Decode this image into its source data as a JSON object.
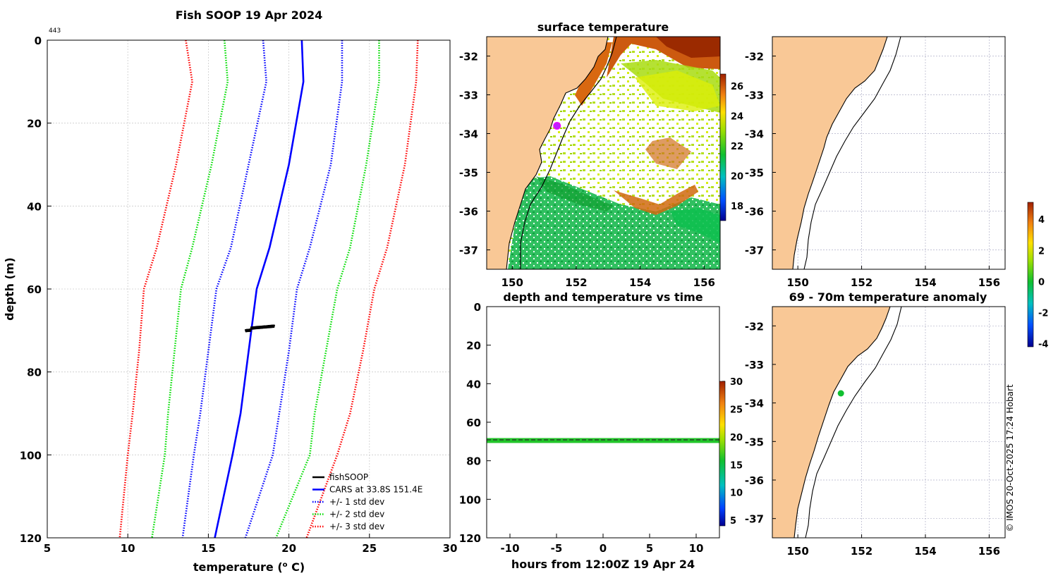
{
  "profile": {
    "title": "Fish SOOP 19 Apr 2024",
    "id_label": "443",
    "xlabel_prefix": "temperature (",
    "xlabel_sup": "o",
    "xlabel_suffix": " C)",
    "ylabel": "depth (m)",
    "legend": [
      {
        "label": "fishSOOP",
        "color": "#000000",
        "style": "solid"
      },
      {
        "label": "CARS at 33.8S 151.4E",
        "color": "#0000ff",
        "style": "solid"
      },
      {
        "label": "+/- 1 std dev",
        "color": "#0000ff",
        "style": "dotted"
      },
      {
        "label": "+/- 2 std dev",
        "color": "#00dd00",
        "style": "dotted"
      },
      {
        "label": "+/- 3 std dev",
        "color": "#ff0000",
        "style": "dotted"
      }
    ]
  },
  "sst_map": {
    "title": "surface temperature",
    "colorbar_ticks": [
      "18",
      "20",
      "22",
      "24",
      "26"
    ]
  },
  "depth_time": {
    "title": "depth and temperature vs time",
    "xlabel": "hours from 12:00Z 19 Apr 24",
    "colorbar_ticks": [
      "5",
      "10",
      "15",
      "20",
      "25",
      "30"
    ]
  },
  "anomaly_map": {
    "title": "69 - 70m temperature anomaly",
    "colorbar_ticks": [
      "-4",
      "-2",
      "0",
      "2",
      "4"
    ]
  },
  "map_ticks": {
    "lat": [
      "-32",
      "-33",
      "-34",
      "-35",
      "-36",
      "-37"
    ],
    "lon": [
      "150",
      "152",
      "154",
      "156"
    ]
  },
  "footer": "© IMOS 20-Oct-2025 17:24 Hobart",
  "colors": {
    "land": "#f9c896",
    "cars": "#0000ff",
    "std1": "#0000ff",
    "std2": "#00dd00",
    "std3": "#ff0000"
  },
  "chart_data": [
    {
      "type": "line",
      "title": "Fish SOOP 19 Apr 2024",
      "xlabel": "temperature (o C)",
      "ylabel": "depth (m)",
      "xlim": [
        5,
        30
      ],
      "ylim": [
        120,
        0
      ],
      "xticks": [
        "5",
        "10",
        "15",
        "20",
        "25",
        "30"
      ],
      "yticks": [
        "0",
        "20",
        "40",
        "60",
        "80",
        "100",
        "120"
      ],
      "depths": [
        0,
        10,
        30,
        50,
        60,
        75,
        90,
        100,
        120
      ],
      "series": [
        {
          "name": "CARS at 33.8S 151.4E",
          "values": [
            20.8,
            20.9,
            20.0,
            18.8,
            18.0,
            17.5,
            17.0,
            16.5,
            15.4
          ]
        },
        {
          "name": "+1 std dev",
          "values": [
            23.3,
            23.3,
            22.6,
            21.3,
            20.5,
            20.0,
            19.4,
            19.0,
            17.3
          ]
        },
        {
          "name": "-1 std dev",
          "values": [
            18.4,
            18.6,
            17.5,
            16.4,
            15.5,
            15.0,
            14.5,
            14.1,
            13.4
          ]
        },
        {
          "name": "+2 std dev",
          "values": [
            25.6,
            25.6,
            24.8,
            23.8,
            23.0,
            22.3,
            21.6,
            21.3,
            19.2
          ]
        },
        {
          "name": "-2 std dev",
          "values": [
            16.0,
            16.2,
            15.2,
            14.0,
            13.3,
            12.9,
            12.5,
            12.3,
            11.5
          ]
        },
        {
          "name": "+3 std dev",
          "values": [
            28.0,
            27.9,
            27.2,
            26.1,
            25.3,
            24.6,
            23.8,
            23.0,
            21.1
          ]
        },
        {
          "name": "-3 std dev",
          "values": [
            13.6,
            14.0,
            13.0,
            11.8,
            11.0,
            10.7,
            10.3,
            10.0,
            9.5
          ]
        }
      ],
      "fishsoop": {
        "name": "fishSOOP",
        "temp_range": [
          17.3,
          19.1
        ],
        "depth_range": [
          69,
          70
        ]
      }
    },
    {
      "type": "heatmap",
      "title": "surface temperature",
      "xlim": [
        149.2,
        156.5
      ],
      "ylim": [
        -37.5,
        -31.5
      ],
      "colorbar_range": [
        17,
        26.8
      ],
      "vessel_position": {
        "lon": 151.4,
        "lat": -33.8
      }
    },
    {
      "type": "scatter",
      "title": "depth and temperature vs time",
      "xlabel": "hours from 12:00Z 19 Apr 24",
      "xlim": [
        -12.5,
        12.5
      ],
      "ylim": [
        120,
        0
      ],
      "xticks": [
        "-10",
        "-5",
        "0",
        "5",
        "10"
      ],
      "yticks": [
        "0",
        "20",
        "40",
        "60",
        "80",
        "100",
        "120"
      ],
      "depth_range": [
        69,
        70
      ],
      "temperature_range": [
        17,
        19
      ],
      "colorbar_range": [
        4,
        30
      ]
    },
    {
      "type": "scatter",
      "title": "69 - 70m temperature anomaly",
      "xlim": [
        149.2,
        156.5
      ],
      "ylim": [
        -37.5,
        -31.5
      ],
      "points": [
        {
          "lon": 151.35,
          "lat": -33.75,
          "anomaly": 0
        }
      ],
      "colorbar_range": [
        -4.2,
        5.1
      ]
    }
  ]
}
